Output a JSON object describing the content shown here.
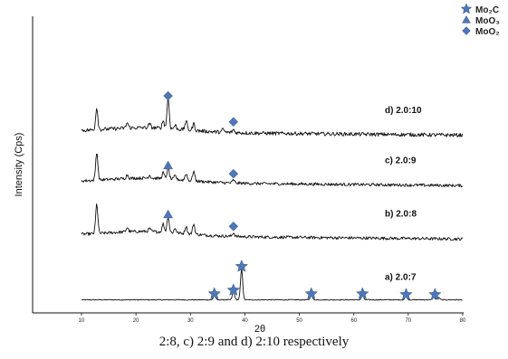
{
  "caption": "2:8, c) 2:9 and d) 2:10 respectively",
  "chart_data": {
    "type": "line",
    "xlabel": "2θ",
    "ylabel": "Intensity (Cps)",
    "xlim": [
      10,
      80
    ],
    "xticks": [
      10,
      20,
      30,
      40,
      50,
      60,
      70,
      80
    ],
    "legend": {
      "position": "top-right",
      "entries": [
        {
          "label": "Mo₂C",
          "marker": "star"
        },
        {
          "label": "MoO₃",
          "marker": "triangle"
        },
        {
          "label": "MoO₂",
          "marker": "diamond"
        }
      ]
    },
    "marker_color": "#4f77b6",
    "series": [
      {
        "name": "a) 2.0:7",
        "baseline": 0.03,
        "noise": 0.006,
        "peaks": [
          [
            34.4,
            0.06
          ],
          [
            37.9,
            0.11
          ],
          [
            39.4,
            0.42
          ],
          [
            52.2,
            0.06
          ],
          [
            61.6,
            0.06
          ],
          [
            69.6,
            0.05
          ],
          [
            74.7,
            0.04
          ],
          [
            75.6,
            0.03
          ]
        ],
        "markers": [
          {
            "x": 34.4,
            "y": 0.11,
            "type": "star"
          },
          {
            "x": 37.9,
            "y": 0.16,
            "type": "star"
          },
          {
            "x": 39.4,
            "y": 0.48,
            "type": "star"
          },
          {
            "x": 52.2,
            "y": 0.11,
            "type": "star"
          },
          {
            "x": 61.6,
            "y": 0.11,
            "type": "star"
          },
          {
            "x": 69.6,
            "y": 0.1,
            "type": "star"
          },
          {
            "x": 74.9,
            "y": 0.1,
            "type": "star"
          }
        ]
      },
      {
        "name": "b) 2.0:8",
        "baseline": 0.9,
        "noise": 0.02,
        "peaks": [
          [
            12.8,
            0.4
          ],
          [
            18.4,
            0.06
          ],
          [
            22.5,
            0.04
          ],
          [
            25.0,
            0.11
          ],
          [
            25.9,
            0.21
          ],
          [
            27.2,
            0.06
          ],
          [
            29.2,
            0.1
          ],
          [
            30.6,
            0.14
          ],
          [
            37.9,
            0.05
          ]
        ],
        "markers": [
          {
            "x": 25.9,
            "y": 1.18,
            "type": "triangle"
          },
          {
            "x": 37.9,
            "y": 1.02,
            "type": "diamond"
          }
        ]
      },
      {
        "name": "c) 2.0:9",
        "baseline": 1.62,
        "noise": 0.02,
        "peaks": [
          [
            12.8,
            0.38
          ],
          [
            18.4,
            0.05
          ],
          [
            22.5,
            0.04
          ],
          [
            25.0,
            0.08
          ],
          [
            25.9,
            0.15
          ],
          [
            27.2,
            0.05
          ],
          [
            29.2,
            0.09
          ],
          [
            30.6,
            0.13
          ],
          [
            37.9,
            0.04
          ]
        ],
        "markers": [
          {
            "x": 25.9,
            "y": 1.84,
            "type": "triangle"
          },
          {
            "x": 37.9,
            "y": 1.73,
            "type": "diamond"
          }
        ]
      },
      {
        "name": "d) 2.0:10",
        "baseline": 2.3,
        "noise": 0.025,
        "peaks": [
          [
            12.8,
            0.3
          ],
          [
            18.4,
            0.07
          ],
          [
            22.5,
            0.05
          ],
          [
            25.0,
            0.1
          ],
          [
            25.9,
            0.42
          ],
          [
            27.2,
            0.05
          ],
          [
            29.2,
            0.12
          ],
          [
            30.6,
            0.09
          ],
          [
            36.0,
            0.04
          ],
          [
            37.9,
            0.04
          ]
        ],
        "markers": [
          {
            "x": 25.9,
            "y": 2.78,
            "type": "diamond"
          },
          {
            "x": 37.9,
            "y": 2.43,
            "type": "diamond"
          }
        ]
      }
    ]
  }
}
